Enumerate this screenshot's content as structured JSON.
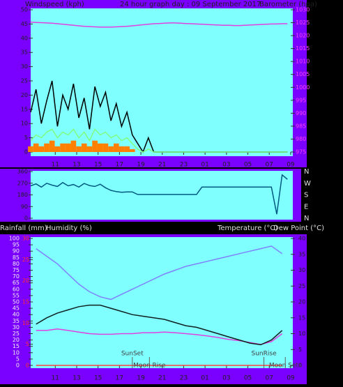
{
  "chart_data": [
    {
      "type": "line",
      "title": "24 hour graph day : 09 September 2017",
      "ylabel": "Windspeed (kph)",
      "y2label": "Barometer (hpa)",
      "x": [
        0,
        0.5,
        1,
        1.5,
        2,
        2.5,
        3,
        3.5,
        4,
        4.5,
        5,
        5.5,
        6,
        6.5,
        7,
        7.5,
        8,
        8.5,
        9,
        9.5,
        10,
        10.5,
        11,
        11.5,
        12,
        12.5,
        13,
        13.5,
        14,
        14.5,
        15,
        15.5,
        16,
        16.5,
        17,
        17.5,
        18,
        18.5,
        19,
        19.5,
        20,
        20.5,
        21,
        21.5,
        22,
        22.5,
        23,
        23.5,
        24
      ],
      "xlim": [
        0,
        24.5
      ],
      "xticks": [
        {
          "value": 2.3,
          "label": "11"
        },
        {
          "value": 4.3,
          "label": "13"
        },
        {
          "value": 6.3,
          "label": "15"
        },
        {
          "value": 8.3,
          "label": "17"
        },
        {
          "value": 10.3,
          "label": "19"
        },
        {
          "value": 12.3,
          "label": "21"
        },
        {
          "value": 14.3,
          "label": "23"
        },
        {
          "value": 16.3,
          "label": "01"
        },
        {
          "value": 18.3,
          "label": "03"
        },
        {
          "value": 20.3,
          "label": "05"
        },
        {
          "value": 22.3,
          "label": "07"
        },
        {
          "value": 24.3,
          "label": "09"
        }
      ],
      "ylim": [
        0,
        50
      ],
      "yticks": [
        0,
        5,
        10,
        15,
        20,
        25,
        30,
        35,
        40,
        45,
        50
      ],
      "y2lim": [
        975,
        1030
      ],
      "y2ticks": [
        975,
        980,
        985,
        990,
        995,
        1000,
        1005,
        1010,
        1015,
        1020,
        1025,
        1030
      ],
      "series": [
        {
          "color": "#ff8000",
          "style": "bars",
          "values": [
            2,
            3,
            2,
            3,
            4,
            2,
            3,
            3,
            4,
            2,
            3,
            2,
            4,
            3,
            3,
            2,
            3,
            2,
            2,
            1,
            0,
            0,
            0,
            0,
            0,
            0,
            0,
            0,
            0,
            0,
            0,
            0,
            0,
            0,
            0,
            0,
            0,
            0,
            0,
            0,
            0,
            0,
            0,
            0,
            0,
            0,
            0,
            0,
            0
          ]
        },
        {
          "color": "#000000",
          "values": [
            14,
            22,
            10,
            18,
            25,
            9,
            20,
            15,
            24,
            12,
            19,
            8,
            23,
            16,
            21,
            11,
            17,
            9,
            14,
            6,
            3,
            0,
            5,
            0,
            0,
            0,
            0,
            0,
            0,
            0,
            0,
            0,
            0,
            0,
            0,
            0,
            0,
            0,
            0,
            0,
            0,
            0,
            0,
            0,
            0,
            0,
            0,
            0,
            0
          ]
        },
        {
          "color": "#80ff80",
          "values": [
            4,
            6,
            5,
            7,
            8,
            5,
            7,
            6,
            8,
            5,
            7,
            4,
            8,
            6,
            7,
            5,
            6,
            4,
            5,
            3,
            1,
            0,
            1,
            0,
            0,
            0,
            0,
            0,
            0,
            0,
            0,
            0,
            0,
            0,
            0,
            0,
            0,
            0,
            0,
            0,
            0,
            0,
            0,
            0,
            0,
            0,
            0,
            0,
            0
          ]
        },
        {
          "color": "#e040e0",
          "axis": "y2",
          "values": [
            1025.2,
            1025.1,
            1025,
            1024.9,
            1024.8,
            1024.6,
            1024.4,
            1024.2,
            1024,
            1023.8,
            1023.6,
            1023.5,
            1023.4,
            1023.3,
            1023.3,
            1023.3,
            1023.4,
            1023.5,
            1023.6,
            1023.8,
            1024,
            1024.2,
            1024.4,
            1024.6,
            1024.7,
            1024.8,
            1024.9,
            1024.9,
            1024.8,
            1024.7,
            1024.6,
            1024.5,
            1024.4,
            1024.3,
            1024.2,
            1024.1,
            1024,
            1024,
            1023.9,
            1023.9,
            1024,
            1024.1,
            1024.2,
            1024.3,
            1024.4,
            1024.5,
            1024.5,
            1024.6,
            1024.6
          ]
        }
      ]
    },
    {
      "type": "line",
      "x": [
        0,
        0.5,
        1,
        1.5,
        2,
        2.5,
        3,
        3.5,
        4,
        4.5,
        5,
        5.5,
        6,
        6.5,
        7,
        7.5,
        8,
        8.5,
        9,
        9.5,
        10,
        10.5,
        11,
        11.5,
        12,
        12.5,
        13,
        13.5,
        14,
        14.5,
        15,
        15.5,
        16,
        16.5,
        17,
        17.5,
        18,
        18.5,
        19,
        19.5,
        20,
        20.5,
        21,
        21.5,
        22,
        22.5,
        23,
        23.5,
        24
      ],
      "xlim": [
        0,
        24.5
      ],
      "ylim": [
        0,
        360
      ],
      "yticks": [
        0,
        90,
        180,
        270,
        360
      ],
      "direction_labels": [
        "N",
        "W",
        "S",
        "E",
        "N"
      ],
      "series": [
        {
          "color": "#005a80",
          "values": [
            250,
            265,
            240,
            270,
            255,
            245,
            275,
            250,
            260,
            240,
            268,
            252,
            245,
            262,
            235,
            215,
            205,
            200,
            203,
            203,
            183,
            183,
            183,
            183,
            183,
            183,
            183,
            183,
            183,
            183,
            183,
            183,
            240,
            240,
            240,
            240,
            240,
            240,
            240,
            240,
            240,
            240,
            240,
            240,
            240,
            240,
            31,
            334,
            300
          ]
        }
      ]
    },
    {
      "type": "line",
      "ylabel": "Humidity (%)",
      "y3label": "Rainfall (mm)",
      "y2label": "Temperature (°C)",
      "y2label_b": "Dew Point (°C)",
      "x": [
        0.5,
        1.5,
        2.5,
        3.5,
        4.5,
        5.5,
        6.5,
        7.5,
        8.5,
        9.5,
        10.5,
        11.5,
        12.5,
        13.5,
        14.5,
        15.5,
        16.5,
        17.5,
        18.5,
        19.5,
        20.5,
        21.5,
        22.5,
        23.5
      ],
      "xlim": [
        0,
        24.5
      ],
      "xticks": [
        {
          "value": 2.3,
          "label": "11"
        },
        {
          "value": 4.3,
          "label": "13"
        },
        {
          "value": 6.3,
          "label": "15"
        },
        {
          "value": 8.3,
          "label": "17"
        },
        {
          "value": 10.3,
          "label": "19"
        },
        {
          "value": 12.3,
          "label": "21"
        },
        {
          "value": 14.3,
          "label": "23"
        },
        {
          "value": 16.3,
          "label": "01"
        },
        {
          "value": 18.3,
          "label": "03"
        },
        {
          "value": 20.3,
          "label": "05"
        },
        {
          "value": 22.3,
          "label": "07"
        },
        {
          "value": 24.3,
          "label": "09"
        }
      ],
      "ylim": [
        0,
        100
      ],
      "yticks": [
        0,
        5,
        10,
        15,
        20,
        25,
        30,
        35,
        40,
        45,
        50,
        55,
        60,
        65,
        70,
        75,
        80,
        85,
        90,
        95,
        100
      ],
      "y2lim": [
        0,
        40
      ],
      "y2ticks": [
        0,
        5,
        10,
        15,
        20,
        25,
        30,
        35,
        40
      ],
      "y3lim": [
        0,
        30
      ],
      "y3ticks": [
        0,
        5,
        10,
        15,
        20,
        25,
        30
      ],
      "series": [
        {
          "color": "#8080ff",
          "values": [
            92,
            86,
            80,
            72,
            64,
            58,
            54,
            52,
            56,
            60,
            64,
            68,
            72,
            75,
            78,
            80,
            82,
            84,
            86,
            88,
            90,
            92,
            94,
            88
          ]
        },
        {
          "color": "#ff4040",
          "axis": "y3",
          "values": [
            0,
            0,
            0,
            0,
            0,
            0,
            0,
            0,
            0,
            0,
            0,
            0,
            0,
            0,
            0,
            0,
            0,
            0,
            0,
            0,
            0,
            0,
            0,
            0
          ]
        },
        {
          "color": "#e040e0",
          "axis": "y2",
          "values": [
            11,
            11,
            11.5,
            11,
            10.5,
            10,
            9.8,
            9.8,
            10,
            10,
            10.3,
            10.3,
            10.5,
            10.3,
            10,
            9.7,
            9.3,
            8.8,
            8.2,
            7.8,
            7.2,
            6.6,
            7.5,
            10
          ]
        },
        {
          "color": "#102020",
          "axis": "y2",
          "values": [
            13,
            15,
            16.5,
            17.5,
            18.5,
            19,
            19,
            18,
            17,
            16,
            15.5,
            15,
            14.5,
            13.5,
            12.5,
            12,
            11,
            10,
            9,
            8,
            7,
            6.5,
            8,
            11
          ]
        }
      ],
      "annotations": [
        {
          "x": 9.5,
          "label": "SunSet"
        },
        {
          "x": 11.1,
          "label": "Moon Rise"
        },
        {
          "x": 21.8,
          "label": "SunRise"
        },
        {
          "x": 23.8,
          "label": "Moon Sets"
        }
      ]
    }
  ]
}
